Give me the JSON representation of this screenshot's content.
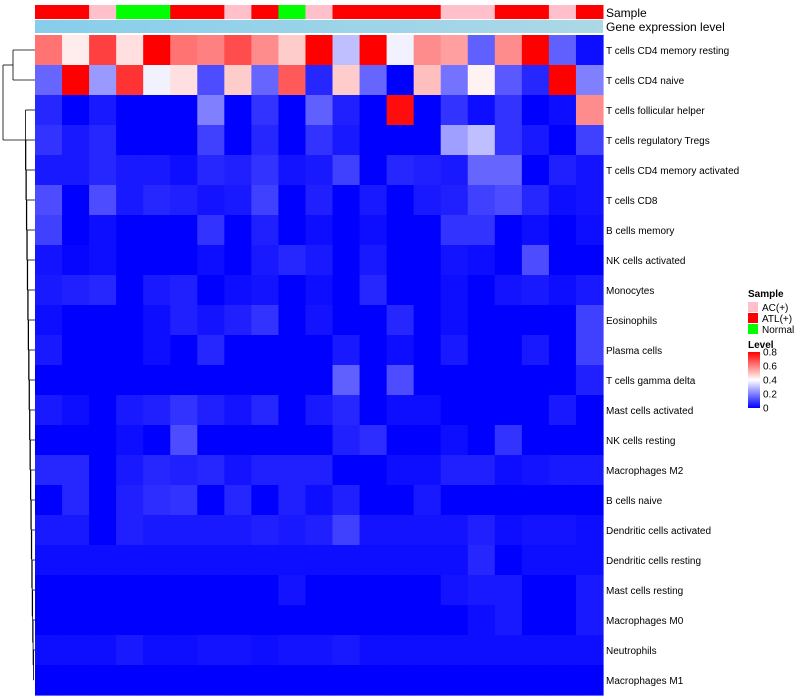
{
  "chart_data": {
    "type": "heatmap",
    "title": "",
    "annotations": {
      "sample_label": "Sample",
      "expression_label": "Gene expression level",
      "sample_groups": [
        "ATL(+)",
        "ATL(+)",
        "AC(+)",
        "Normal",
        "Normal",
        "ATL(+)",
        "ATL(+)",
        "AC(+)",
        "ATL(+)",
        "Normal",
        "AC(+)",
        "ATL(+)",
        "ATL(+)",
        "ATL(+)",
        "ATL(+)",
        "AC(+)",
        "AC(+)",
        "ATL(+)",
        "ATL(+)",
        "AC(+)",
        "ATL(+)"
      ]
    },
    "rows": [
      "T cells CD4 memory resting",
      "T cells CD4 naive",
      "T cells follicular helper",
      "T cells regulatory  Tregs",
      "T cells CD4 memory activated",
      "T cells CD8",
      "B cells memory",
      "NK cells activated",
      "Monocytes",
      "Eosinophils",
      "Plasma cells",
      "T cells gamma delta",
      "Mast cells activated",
      "NK cells resting",
      "Macrophages M2",
      "B cells naive",
      "Dendritic cells activated",
      "Dendritic cells resting",
      "Mast cells resting",
      "Macrophages M0",
      "Neutrophils",
      "Macrophages M1"
    ],
    "values": [
      [
        0.62,
        0.43,
        0.7,
        0.45,
        0.8,
        0.62,
        0.6,
        0.68,
        0.58,
        0.48,
        0.8,
        0.3,
        0.8,
        0.38,
        0.58,
        0.55,
        0.15,
        0.58,
        0.8,
        0.15,
        0.02
      ],
      [
        0.16,
        0.8,
        0.24,
        0.72,
        0.38,
        0.45,
        0.12,
        0.48,
        0.16,
        0.66,
        0.06,
        0.48,
        0.16,
        0.0,
        0.5,
        0.18,
        0.42,
        0.14,
        0.06,
        0.8,
        0.2
      ],
      [
        0.06,
        0.0,
        0.04,
        0.0,
        0.0,
        0.0,
        0.2,
        0.0,
        0.08,
        0.0,
        0.15,
        0.05,
        0.0,
        0.78,
        0.0,
        0.08,
        0.02,
        0.08,
        0.0,
        0.02,
        0.58
      ],
      [
        0.08,
        0.04,
        0.06,
        0.0,
        0.0,
        0.0,
        0.1,
        0.0,
        0.06,
        0.0,
        0.08,
        0.04,
        0.0,
        0.0,
        0.0,
        0.25,
        0.3,
        0.08,
        0.04,
        0.0,
        0.1
      ],
      [
        0.04,
        0.04,
        0.06,
        0.04,
        0.04,
        0.02,
        0.06,
        0.05,
        0.08,
        0.03,
        0.04,
        0.1,
        0.0,
        0.06,
        0.05,
        0.04,
        0.16,
        0.16,
        0.0,
        0.05,
        0.03
      ],
      [
        0.12,
        0.0,
        0.12,
        0.04,
        0.06,
        0.05,
        0.03,
        0.04,
        0.1,
        0.0,
        0.05,
        0.0,
        0.04,
        0.0,
        0.04,
        0.05,
        0.1,
        0.12,
        0.06,
        0.02,
        0.03
      ],
      [
        0.1,
        0.0,
        0.02,
        0.0,
        0.0,
        0.0,
        0.08,
        0.0,
        0.05,
        0.0,
        0.02,
        0.0,
        0.02,
        0.0,
        0.0,
        0.08,
        0.08,
        0.0,
        0.02,
        0.0,
        0.02
      ],
      [
        0.03,
        0.01,
        0.02,
        0.0,
        0.0,
        0.0,
        0.02,
        0.0,
        0.04,
        0.06,
        0.04,
        0.0,
        0.04,
        0.0,
        0.0,
        0.03,
        0.02,
        0.0,
        0.12,
        0.0,
        0.0
      ],
      [
        0.04,
        0.05,
        0.06,
        0.0,
        0.04,
        0.05,
        0.0,
        0.02,
        0.03,
        0.0,
        0.02,
        0.0,
        0.06,
        0.0,
        0.0,
        0.02,
        0.0,
        0.03,
        0.04,
        0.02,
        0.04
      ],
      [
        0.02,
        0.0,
        0.0,
        0.0,
        0.02,
        0.05,
        0.03,
        0.05,
        0.08,
        0.0,
        0.03,
        0.0,
        0.0,
        0.06,
        0.0,
        0.02,
        0.0,
        0.0,
        0.0,
        0.0,
        0.1
      ],
      [
        0.04,
        0.0,
        0.0,
        0.0,
        0.02,
        0.0,
        0.06,
        0.0,
        0.0,
        0.0,
        0.0,
        0.04,
        0.0,
        0.02,
        0.0,
        0.04,
        0.0,
        0.0,
        0.04,
        0.0,
        0.1
      ],
      [
        0.0,
        0.0,
        0.0,
        0.0,
        0.0,
        0.0,
        0.0,
        0.0,
        0.0,
        0.0,
        0.0,
        0.15,
        0.0,
        0.12,
        0.0,
        0.0,
        0.0,
        0.0,
        0.0,
        0.0,
        0.05
      ],
      [
        0.04,
        0.02,
        0.0,
        0.04,
        0.05,
        0.08,
        0.05,
        0.03,
        0.06,
        0.0,
        0.04,
        0.06,
        0.0,
        0.02,
        0.02,
        0.0,
        0.0,
        0.0,
        0.0,
        0.04,
        0.0
      ],
      [
        0.0,
        0.0,
        0.0,
        0.02,
        0.0,
        0.12,
        0.0,
        0.0,
        0.0,
        0.0,
        0.0,
        0.05,
        0.07,
        0.0,
        0.0,
        0.02,
        0.0,
        0.08,
        0.0,
        0.0,
        0.0
      ],
      [
        0.06,
        0.06,
        0.0,
        0.04,
        0.06,
        0.05,
        0.06,
        0.03,
        0.05,
        0.05,
        0.05,
        0.0,
        0.0,
        0.02,
        0.02,
        0.05,
        0.05,
        0.02,
        0.03,
        0.04,
        0.04
      ],
      [
        0.0,
        0.06,
        0.0,
        0.05,
        0.07,
        0.08,
        0.0,
        0.06,
        0.0,
        0.05,
        0.02,
        0.05,
        0.0,
        0.0,
        0.04,
        0.0,
        0.0,
        0.0,
        0.0,
        0.0,
        0.0
      ],
      [
        0.04,
        0.04,
        0.0,
        0.05,
        0.04,
        0.04,
        0.04,
        0.04,
        0.05,
        0.04,
        0.05,
        0.1,
        0.03,
        0.03,
        0.03,
        0.03,
        0.05,
        0.02,
        0.03,
        0.03,
        0.02
      ],
      [
        0.02,
        0.02,
        0.02,
        0.02,
        0.02,
        0.02,
        0.02,
        0.02,
        0.02,
        0.02,
        0.02,
        0.02,
        0.02,
        0.02,
        0.02,
        0.02,
        0.06,
        0.0,
        0.02,
        0.02,
        0.02
      ],
      [
        0.0,
        0.0,
        0.0,
        0.0,
        0.0,
        0.0,
        0.0,
        0.0,
        0.0,
        0.03,
        0.0,
        0.0,
        0.0,
        0.0,
        0.0,
        0.03,
        0.04,
        0.04,
        0.0,
        0.0,
        0.04
      ],
      [
        0.0,
        0.0,
        0.0,
        0.0,
        0.0,
        0.0,
        0.0,
        0.0,
        0.0,
        0.0,
        0.0,
        0.0,
        0.0,
        0.0,
        0.0,
        0.0,
        0.02,
        0.04,
        0.0,
        0.0,
        0.04
      ],
      [
        0.02,
        0.02,
        0.02,
        0.04,
        0.02,
        0.02,
        0.03,
        0.03,
        0.02,
        0.03,
        0.03,
        0.04,
        0.02,
        0.02,
        0.02,
        0.02,
        0.02,
        0.02,
        0.02,
        0.02,
        0.02
      ],
      [
        0.0,
        0.0,
        0.0,
        0.0,
        0.0,
        0.0,
        0.0,
        0.0,
        0.0,
        0.0,
        0.0,
        0.0,
        0.0,
        0.0,
        0.0,
        0.0,
        0.0,
        0.0,
        0.0,
        0.0,
        0.0
      ]
    ],
    "color_scale": {
      "stops": [
        0,
        0.4,
        0.8
      ],
      "colors": [
        "#0000ff",
        "#ffffff",
        "#ff0000"
      ]
    },
    "legend": {
      "sample_title": "Sample",
      "sample_entries": [
        {
          "label": "AC(+)",
          "color": "#ffc0cb"
        },
        {
          "label": "ATL(+)",
          "color": "#ff0000"
        },
        {
          "label": "Normal",
          "color": "#00ff00"
        }
      ],
      "level_title": "Level",
      "level_ticks": [
        0.8,
        0.6,
        0.4,
        0.2,
        0
      ],
      "position": "right"
    },
    "expression_colors": {
      "a": "#87ceeb",
      "b": "#add8e6"
    },
    "dendrogram": "left"
  }
}
